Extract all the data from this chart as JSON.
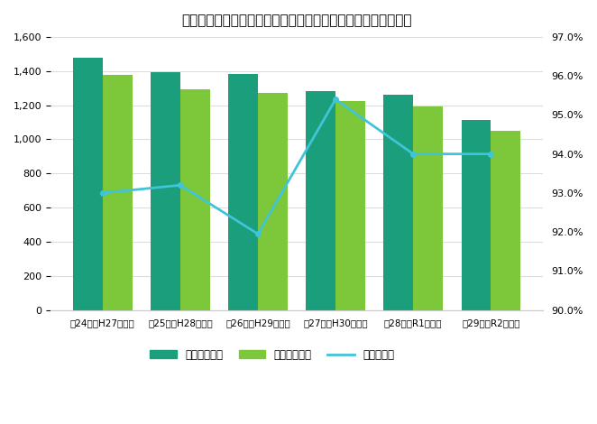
{
  "title": "あん摩マッサージ指圧師国家試験受験者数推移と合格率　新卒",
  "categories": [
    "第24回（H27年度）",
    "第25回（H28年度）",
    "第26回（H29年度）",
    "第27回（H30年度）",
    "第28回（R1年度）",
    "第29回（R2年度）"
  ],
  "examinees": [
    1480,
    1395,
    1385,
    1285,
    1260,
    1115
  ],
  "passers": [
    1380,
    1295,
    1270,
    1225,
    1190,
    1050
  ],
  "pass_rate": [
    0.93,
    0.932,
    0.9195,
    0.954,
    0.94,
    0.94
  ],
  "bar_color_examinees": "#1a9e7c",
  "bar_color_passers": "#7dc73a",
  "line_color": "#40c4d8",
  "ylim_left": [
    0,
    1600
  ],
  "ylim_right": [
    0.9,
    0.97
  ],
  "yticks_left": [
    0,
    200,
    400,
    600,
    800,
    1000,
    1200,
    1400,
    1600
  ],
  "yticks_right": [
    0.9,
    0.91,
    0.92,
    0.93,
    0.94,
    0.95,
    0.96,
    0.97
  ],
  "legend_labels": [
    "新卒受験者数",
    "新卒合格者数",
    "新卒合格率"
  ],
  "background_color": "#ffffff",
  "grid_color": "#dddddd",
  "bar_width": 0.38
}
